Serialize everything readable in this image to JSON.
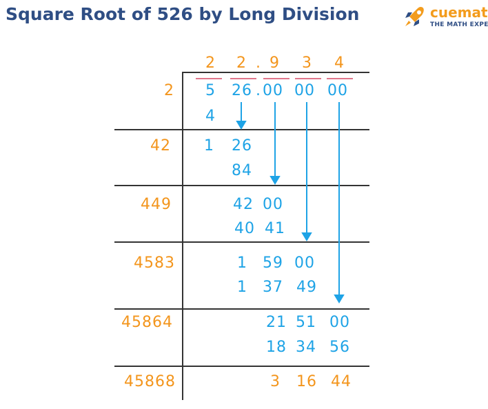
{
  "header": {
    "title": "Square Root of 526 by Long Division",
    "brand_name": "cuemath",
    "brand_tagline": "THE MATH EXPERT",
    "logo_icon": "rocket-icon"
  },
  "division": {
    "quotient": [
      "2",
      "2",
      ".",
      "9",
      "3",
      "4"
    ],
    "dividend": [
      "5",
      "26",
      ".",
      "00",
      "00",
      "00"
    ],
    "rows": [
      {
        "divisor": "2",
        "subtract": "4"
      },
      {
        "divisor": "42",
        "remainder": [
          "1",
          "26"
        ],
        "subtract": "84"
      },
      {
        "divisor": "449",
        "remainder": [
          "42",
          "00"
        ],
        "subtract": [
          "40",
          "41"
        ]
      },
      {
        "divisor": "4583",
        "remainder": [
          "1",
          "59",
          "00"
        ],
        "subtract": [
          "1",
          "37",
          "49"
        ]
      },
      {
        "divisor": "45864",
        "remainder": [
          "21",
          "51",
          "00"
        ],
        "subtract": [
          "18",
          "34",
          "56"
        ]
      },
      {
        "divisor": "45868",
        "remainder": [
          "3",
          "16",
          "44"
        ]
      }
    ]
  },
  "colors": {
    "title": "#2f4e84",
    "accent_orange": "#f3951c",
    "digit_blue": "#1ea3e6",
    "bar_pink": "#e0758a",
    "line": "#333333"
  }
}
